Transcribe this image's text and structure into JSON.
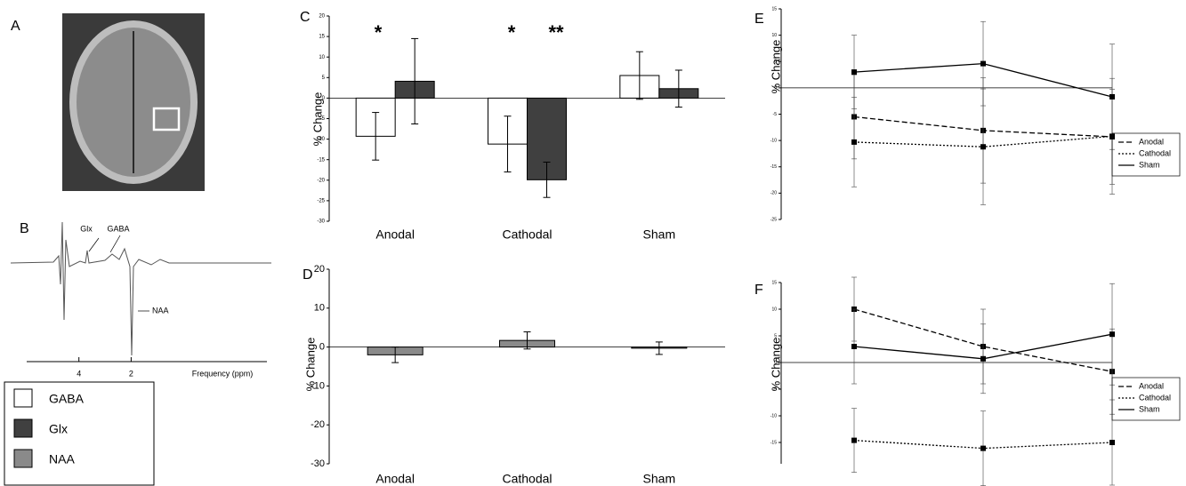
{
  "panel_labels": [
    "A",
    "B",
    "C",
    "D",
    "E",
    "F"
  ],
  "spectrum": {
    "peaks": [
      "Glx",
      "GABA",
      "NAA"
    ],
    "xlabel": "Frequency (ppm)",
    "xlim": [
      6,
      -3.2
    ],
    "xticks": [
      4,
      2
    ]
  },
  "chart_data": [
    {
      "type": "bar",
      "ylabel": "% Change",
      "categories": [
        "Anodal",
        "Cathodal",
        "Sham"
      ],
      "series": [
        {
          "name": "GABA",
          "color": "#ffffff",
          "values": [
            -9.3,
            -11.2,
            5.5
          ],
          "errors": [
            5.8,
            6.8,
            5.8
          ]
        },
        {
          "name": "Glx",
          "color": "#404040",
          "values": [
            4.1,
            -19.9,
            2.3
          ],
          "errors": [
            10.4,
            4.3,
            4.5
          ]
        }
      ],
      "ylim": [
        -30,
        20
      ],
      "yticks": [
        -30,
        -25,
        -20,
        -15,
        -10,
        -5,
        0,
        5,
        10,
        15,
        20
      ],
      "annotations": [
        "*",
        "*",
        "**"
      ]
    },
    {
      "type": "bar",
      "ylabel": "% Change",
      "categories": [
        "Anodal",
        "Cathodal",
        "Sham"
      ],
      "series": [
        {
          "name": "NAA",
          "color": "#8a8a8a",
          "values": [
            -2,
            1.7,
            -0.3
          ],
          "errors": [
            2,
            2.2,
            1.6
          ]
        }
      ],
      "ylim": [
        -30,
        20
      ],
      "yticks": [
        -30,
        -20,
        -10,
        0,
        10,
        20
      ]
    },
    {
      "type": "line",
      "ylabel": "% Change",
      "categories": [
        null,
        null,
        null
      ],
      "series": [
        {
          "name": "Anodal",
          "color": "#000000",
          "dash": "dashed",
          "values": [
            -5.5,
            -8.1,
            -9.3
          ],
          "errors": [
            8,
            10,
            9
          ]
        },
        {
          "name": "Cathodal",
          "color": "#000000",
          "dash": "dotted",
          "values": [
            -10.3,
            -11.2,
            -9.2
          ],
          "errors": [
            8.5,
            11,
            11
          ]
        },
        {
          "name": "Sham",
          "color": "#000000",
          "dash": "solid",
          "values": [
            3,
            4.6,
            -1.7
          ],
          "errors": [
            7,
            8,
            10
          ]
        }
      ],
      "ylim": [
        -25,
        15
      ],
      "yticks": [
        -25,
        -20,
        -15,
        -10,
        -5,
        0,
        5,
        10,
        15
      ]
    },
    {
      "type": "line",
      "ylabel": "% Change",
      "categories": [
        null,
        null,
        null
      ],
      "series": [
        {
          "name": "Anodal",
          "color": "#000000",
          "dash": "dashed",
          "values": [
            10,
            3,
            -1.7
          ],
          "errors": [
            6,
            7,
            8
          ]
        },
        {
          "name": "Cathodal",
          "color": "#000000",
          "dash": "dotted",
          "values": [
            -14.6,
            -16.1,
            -15
          ],
          "errors": [
            6,
            7,
            8
          ]
        },
        {
          "name": "Sham",
          "color": "#000000",
          "dash": "solid",
          "values": [
            3,
            0.7,
            5.3
          ],
          "errors": [
            7,
            6.5,
            9.5
          ]
        }
      ],
      "ylim": [
        -19,
        15
      ],
      "yticks": [
        -15,
        -10,
        -5,
        0,
        5,
        10,
        15
      ]
    }
  ]
}
